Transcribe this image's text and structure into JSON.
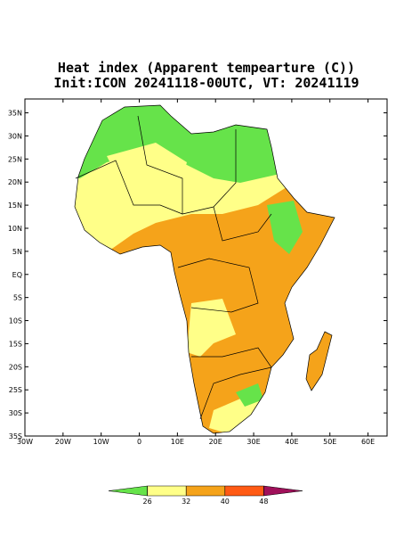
{
  "map": {
    "title": "Heat index (Apparent tempearture (C))",
    "subtitle": "Init:ICON 20241118-00UTC, VT: 20241119",
    "xlim": [
      -30,
      65
    ],
    "ylim": [
      -35,
      38
    ],
    "lon_ticks": [
      {
        "value": -30,
        "label": "30W"
      },
      {
        "value": -20,
        "label": "20W"
      },
      {
        "value": -10,
        "label": "10W"
      },
      0,
      {
        "value": 10,
        "label": "10E"
      },
      {
        "value": 20,
        "label": "20E"
      },
      {
        "value": 30,
        "label": "30E"
      },
      {
        "value": 40,
        "label": "40E"
      },
      {
        "value": 50,
        "label": "50E"
      },
      {
        "value": 60,
        "label": "60E"
      }
    ],
    "lat_ticks": [
      {
        "value": 35,
        "label": "35N"
      },
      {
        "value": 30,
        "label": "30N"
      },
      {
        "value": 25,
        "label": "25N"
      },
      {
        "value": 20,
        "label": "20N"
      },
      {
        "value": 15,
        "label": "15N"
      },
      {
        "value": 10,
        "label": "10N"
      },
      {
        "value": 5,
        "label": "5N"
      },
      {
        "value": 0,
        "label": "EQ"
      },
      {
        "value": -5,
        "label": "5S"
      },
      {
        "value": -10,
        "label": "10S"
      },
      {
        "value": -15,
        "label": "15S"
      },
      {
        "value": -20,
        "label": "20S"
      },
      {
        "value": -25,
        "label": "25S"
      },
      {
        "value": -30,
        "label": "30S"
      },
      {
        "value": -35,
        "label": "35S"
      }
    ],
    "colorbar": {
      "ticks": [
        26,
        32,
        40,
        48
      ],
      "colors": [
        "#66e34a",
        "#ffff88",
        "#f5a31a",
        "#ff5a14",
        "#a0105a"
      ]
    }
  }
}
